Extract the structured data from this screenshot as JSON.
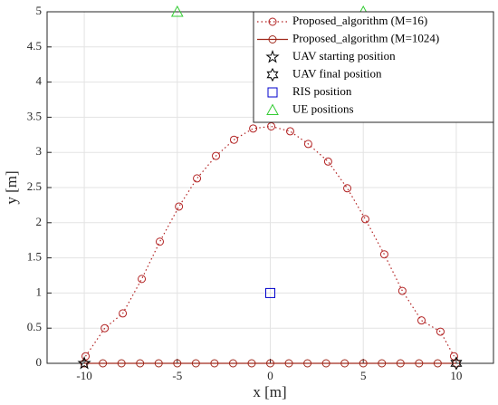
{
  "chart_data": {
    "type": "line",
    "xlabel": "x [m]",
    "ylabel": "y [m]",
    "xlim": [
      -12,
      12
    ],
    "xticks": [
      -10,
      -5,
      0,
      5,
      10
    ],
    "ylim": [
      0,
      5
    ],
    "yticks": [
      0,
      0.5,
      1,
      1.5,
      2,
      2.5,
      3,
      3.5,
      4,
      4.5,
      5
    ],
    "grid": true,
    "legend": "upper right",
    "series": [
      {
        "name": "Proposed_algorithm (M=16)",
        "color": "#b22222",
        "linestyle": "dotted",
        "marker": "circle",
        "x": [
          -9.93,
          -8.9,
          -7.93,
          -6.91,
          -5.94,
          -4.91,
          -3.94,
          -2.92,
          -1.95,
          -0.92,
          0.05,
          1.07,
          2.04,
          3.11,
          4.14,
          5.11,
          6.13,
          7.1,
          8.13,
          9.15,
          9.88
        ],
        "values": [
          0.1,
          0.5,
          0.71,
          1.2,
          1.73,
          2.23,
          2.63,
          2.95,
          3.18,
          3.34,
          3.37,
          3.3,
          3.12,
          2.87,
          2.49,
          2.05,
          1.55,
          1.03,
          0.61,
          0.45,
          0.1
        ]
      },
      {
        "name": "Proposed_algorithm (M=1024)",
        "color": "#a0291c",
        "linestyle": "solid",
        "marker": "circle",
        "x": [
          -10,
          -9,
          -8,
          -7,
          -6,
          -5,
          -4,
          -3,
          -2,
          -1,
          0,
          1,
          2,
          3,
          4,
          5,
          6,
          7,
          8,
          9,
          10
        ],
        "values": [
          0,
          0,
          0,
          0,
          0,
          0,
          0,
          0,
          0,
          0,
          0,
          0,
          0,
          0,
          0,
          0,
          0,
          0,
          0,
          0,
          0
        ]
      },
      {
        "name": "UAV starting position",
        "color": "#000000",
        "linestyle": "none",
        "marker": "star",
        "x": [
          -10
        ],
        "values": [
          0
        ]
      },
      {
        "name": "UAV final position",
        "color": "#000000",
        "linestyle": "none",
        "marker": "hexagram",
        "x": [
          10
        ],
        "values": [
          0
        ]
      },
      {
        "name": "RIS position",
        "color": "#0000cc",
        "linestyle": "none",
        "marker": "square",
        "x": [
          0
        ],
        "values": [
          1
        ]
      },
      {
        "name": "UE positions",
        "color": "#33cc33",
        "linestyle": "none",
        "marker": "triangle",
        "x": [
          -5,
          5
        ],
        "values": [
          5,
          5
        ]
      }
    ]
  }
}
